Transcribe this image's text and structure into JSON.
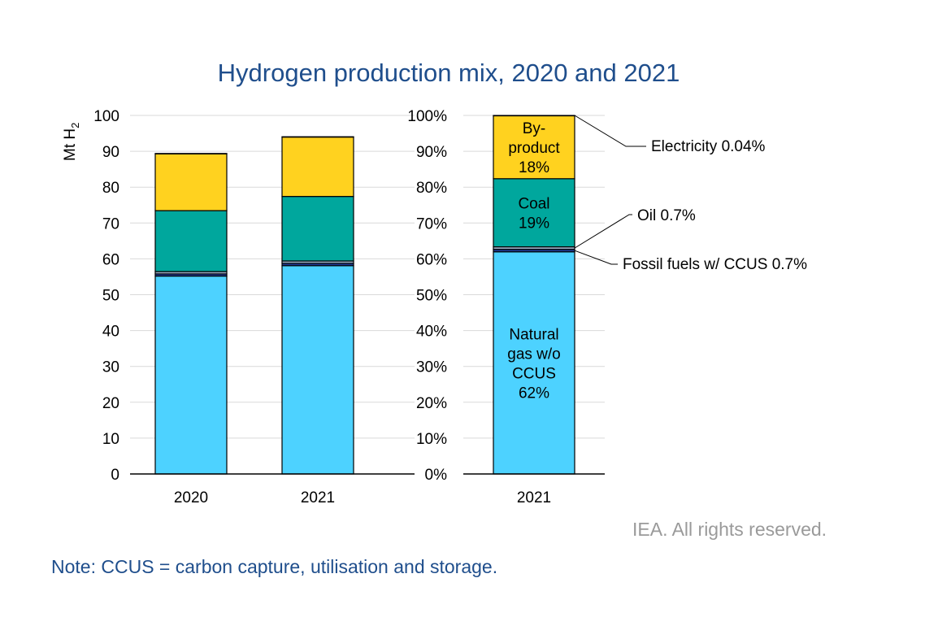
{
  "title": "Hydrogen production mix, 2020 and 2021",
  "credit": "IEA. All rights reserved.",
  "note": "Note: CCUS = carbon capture, utilisation and storage.",
  "colors": {
    "natural_gas": "#4dd2ff",
    "fossil_ccus": "#1f3a93",
    "oil": "#9bb0c8",
    "coal": "#00a79d",
    "by_product": "#ffd21f",
    "electricity": "#ffd21f",
    "title": "#1f4e8c",
    "axis": "#000000",
    "grid": "#d9d9d9"
  },
  "chart_data": [
    {
      "type": "bar",
      "stacked": true,
      "ylabel": "Mt H",
      "ylabel_sub": "2",
      "ylim": [
        0,
        100
      ],
      "yticks": [
        "0",
        "10",
        "20",
        "30",
        "40",
        "50",
        "60",
        "70",
        "80",
        "90",
        "100"
      ],
      "categories": [
        "2020",
        "2021"
      ],
      "series": [
        {
          "key": "natural_gas",
          "values": [
            55.2,
            58.1
          ]
        },
        {
          "key": "fossil_ccus",
          "values": [
            0.6,
            0.65
          ]
        },
        {
          "key": "oil",
          "values": [
            0.65,
            0.66
          ]
        },
        {
          "key": "coal",
          "values": [
            17.0,
            18.0
          ]
        },
        {
          "key": "by_product",
          "values": [
            15.9,
            16.6
          ]
        },
        {
          "key": "electricity",
          "values": [
            0.03,
            0.04
          ]
        }
      ],
      "grid": true
    },
    {
      "type": "bar",
      "stacked": true,
      "ylim": [
        0,
        100
      ],
      "yticks": [
        "0%",
        "10%",
        "20%",
        "30%",
        "40%",
        "50%",
        "60%",
        "70%",
        "80%",
        "90%",
        "100%"
      ],
      "categories": [
        "2021"
      ],
      "series": [
        {
          "key": "natural_gas",
          "values": [
            61.96
          ]
        },
        {
          "key": "fossil_ccus",
          "values": [
            0.7
          ]
        },
        {
          "key": "oil",
          "values": [
            0.7
          ]
        },
        {
          "key": "coal",
          "values": [
            19.0
          ]
        },
        {
          "key": "by_product",
          "values": [
            17.6
          ]
        },
        {
          "key": "electricity",
          "values": [
            0.04
          ]
        }
      ],
      "inside_labels": [
        {
          "key": "natural_gas",
          "lines": [
            "Natural",
            "gas w/o",
            "CCUS",
            "62%"
          ]
        },
        {
          "key": "coal",
          "lines": [
            "Coal",
            "19%"
          ]
        },
        {
          "key": "by_product",
          "lines": [
            "By-",
            "product",
            "18%"
          ]
        }
      ],
      "callouts": [
        {
          "key": "electricity",
          "text": "Electricity 0.04%"
        },
        {
          "key": "oil",
          "text": "Oil 0.7%"
        },
        {
          "key": "fossil_ccus",
          "text": "Fossil fuels w/ CCUS 0.7%"
        }
      ],
      "grid": true
    }
  ]
}
